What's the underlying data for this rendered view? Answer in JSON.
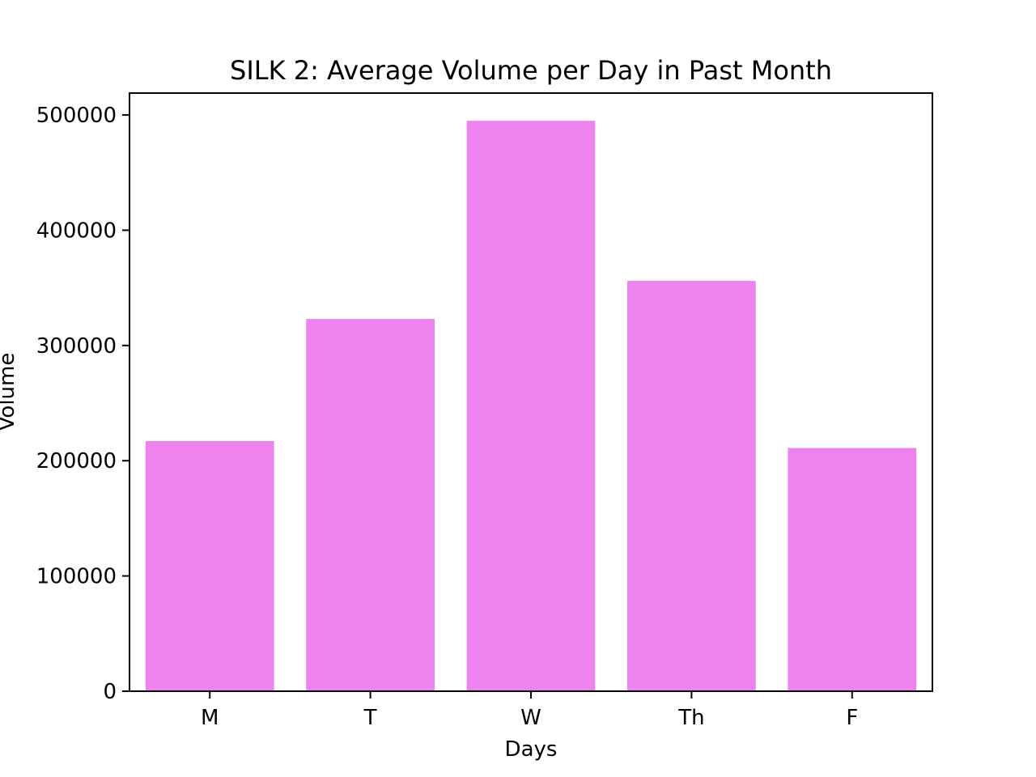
{
  "chart_data": {
    "type": "bar",
    "title": "SILK 2: Average Volume per Day in Past Month",
    "xlabel": "Days",
    "ylabel": "Volume",
    "categories": [
      "M",
      "T",
      "W",
      "Th",
      "F"
    ],
    "values": [
      217000,
      323000,
      495000,
      356000,
      211000
    ],
    "ylim": [
      0,
      519000
    ],
    "yticks": [
      0,
      100000,
      200000,
      300000,
      400000,
      500000
    ],
    "ytick_labels": [
      "0",
      "100000",
      "200000",
      "300000",
      "400000",
      "500000"
    ],
    "bar_color": "#ee82ee",
    "grid": false,
    "legend": "none"
  }
}
